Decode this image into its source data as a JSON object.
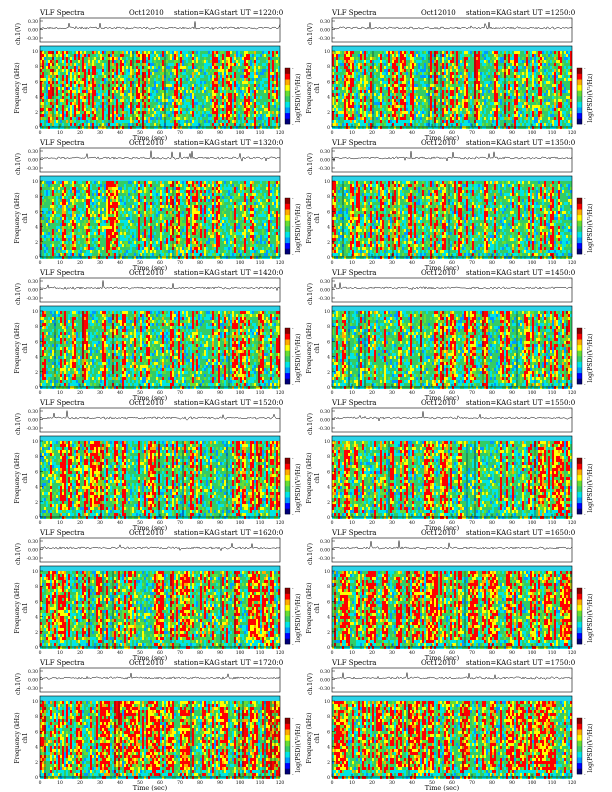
{
  "page": {
    "title": "VLF Spectra"
  },
  "panel_defaults": {
    "title": "VLF Spectra",
    "date": "Oct12010",
    "station": "station=KAG",
    "start_prefix": "start  UT",
    "ylabel_wave": "ch.1(V)",
    "ylabel_freq": "Frequency (kHz)",
    "ylabel_ch": "ch1",
    "xlabel": "Time (sec)",
    "colorbar_label": "log(PSD)(V²/Hz)",
    "wave_ticks": [
      "0.30",
      "0.00",
      "-0.30"
    ],
    "freq_ticks": [
      "0",
      "2",
      "4",
      "6",
      "8",
      "10"
    ],
    "time_ticks": [
      "0",
      "10",
      "20",
      "30",
      "40",
      "50",
      "60",
      "70",
      "80",
      "90",
      "100",
      "110",
      "120"
    ],
    "colorbar_ticks": [
      "-",
      "-",
      "-"
    ]
  },
  "panels": [
    {
      "start_ut": "=1220:0"
    },
    {
      "start_ut": "=1250:0"
    },
    {
      "start_ut": "=1320:0"
    },
    {
      "start_ut": "=1350:0"
    },
    {
      "start_ut": "=1420:0"
    },
    {
      "start_ut": "=1450:0"
    },
    {
      "start_ut": "=1520:0"
    },
    {
      "start_ut": "=1550:0"
    },
    {
      "start_ut": "=1620:0"
    },
    {
      "start_ut": "=1650:0"
    },
    {
      "start_ut": "=1720:0"
    },
    {
      "start_ut": "=1750:0"
    }
  ],
  "colors": {
    "spectrogram_scale": [
      "#00007a",
      "#0000ff",
      "#0099ff",
      "#00e5e5",
      "#33cc66",
      "#66dd33",
      "#ffff00",
      "#ffaa00",
      "#ff0000",
      "#8b0000"
    ],
    "top_band": "#2ad3e8"
  },
  "chart_data": {
    "type": "heatmap",
    "description_of_axes": "time vs frequency spectrogram with waveform trace above",
    "x_range": [
      0,
      120
    ],
    "x_unit": "Time (sec)",
    "y_range": [
      0,
      10
    ],
    "y_unit": "Frequency (kHz)",
    "wave_range": [
      -0.3,
      0.3
    ],
    "panels": [
      {
        "start_ut": "=1220:0",
        "intensity_level": 0.55
      },
      {
        "start_ut": "=1250:0",
        "intensity_level": 0.55
      },
      {
        "start_ut": "=1320:0",
        "intensity_level": 0.45
      },
      {
        "start_ut": "=1350:0",
        "intensity_level": 0.45
      },
      {
        "start_ut": "=1420:0",
        "intensity_level": 0.5
      },
      {
        "start_ut": "=1450:0",
        "intensity_level": 0.5
      },
      {
        "start_ut": "=1520:0",
        "intensity_level": 0.6
      },
      {
        "start_ut": "=1550:0",
        "intensity_level": 0.6
      },
      {
        "start_ut": "=1620:0",
        "intensity_level": 0.7
      },
      {
        "start_ut": "=1650:0",
        "intensity_level": 0.72
      },
      {
        "start_ut": "=1720:0",
        "intensity_level": 0.8
      },
      {
        "start_ut": "=1750:0",
        "intensity_level": 0.82
      }
    ]
  }
}
